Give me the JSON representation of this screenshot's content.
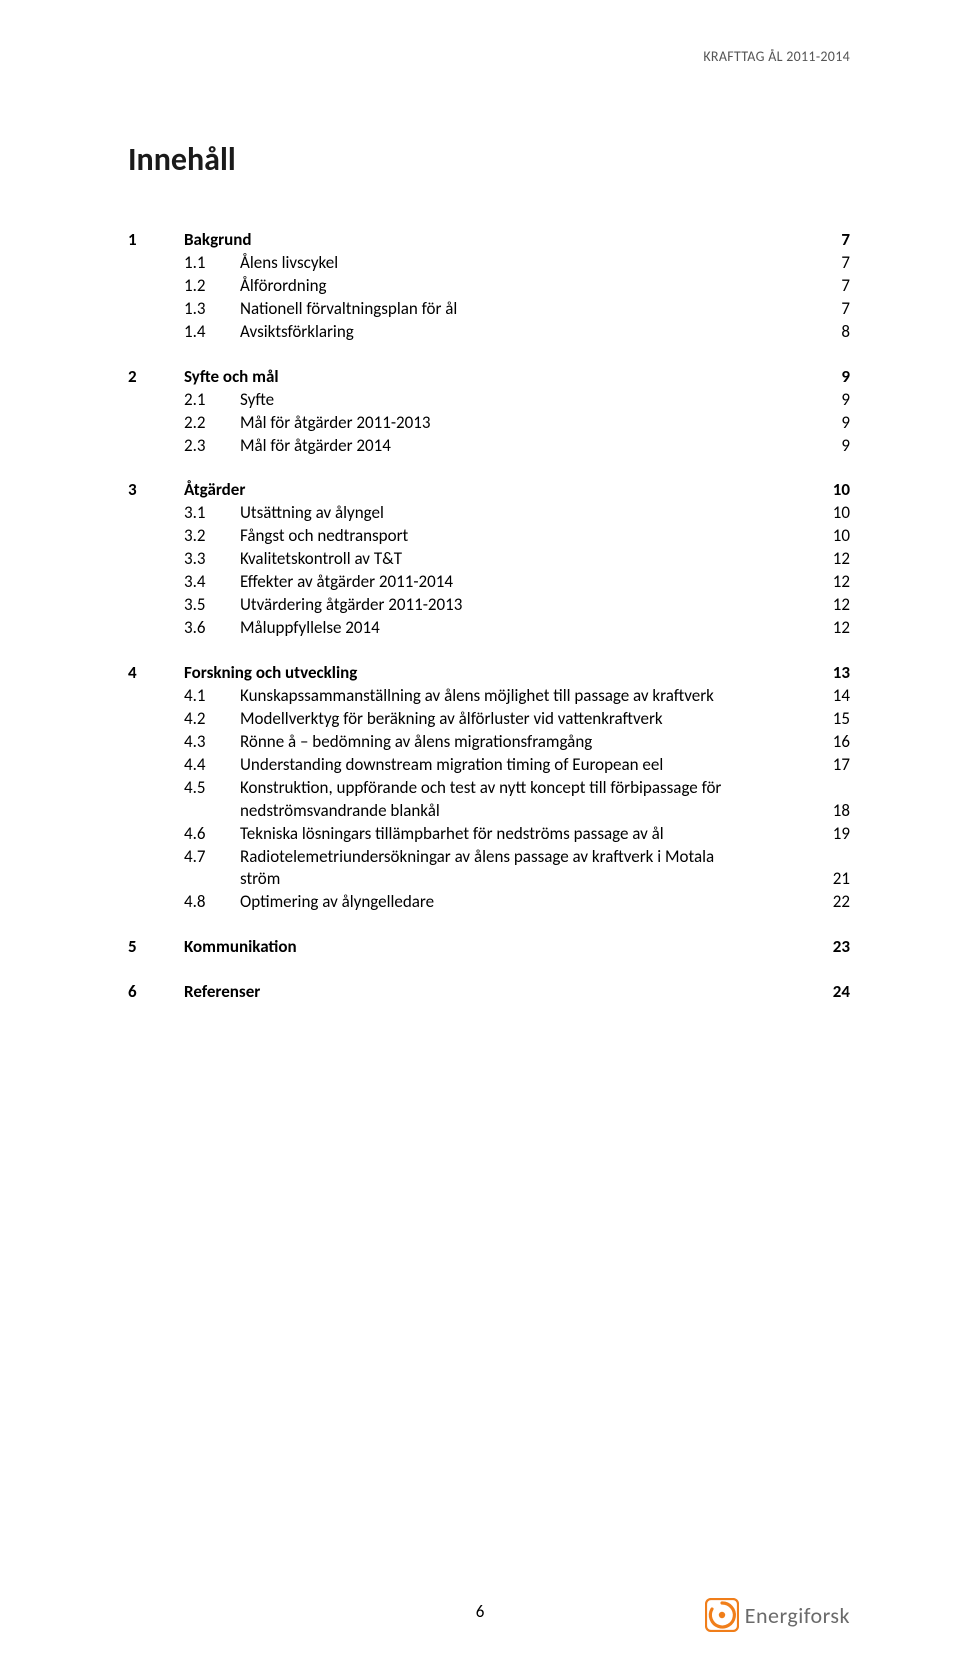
{
  "header": {
    "running": "KRAFTTAG ÅL 2011-2014"
  },
  "title": "Innehåll",
  "toc": [
    {
      "level": 1,
      "num": "1",
      "label": "Bakgrund",
      "page": "7"
    },
    {
      "level": 2,
      "num": "1.1",
      "label": "Ålens livscykel",
      "page": "7"
    },
    {
      "level": 2,
      "num": "1.2",
      "label": "Ålförordning",
      "page": "7"
    },
    {
      "level": 2,
      "num": "1.3",
      "label": "Nationell förvaltningsplan för ål",
      "page": "7"
    },
    {
      "level": 2,
      "num": "1.4",
      "label": "Avsiktsförklaring",
      "page": "8"
    },
    {
      "level": 1,
      "num": "2",
      "label": "Syfte och mål",
      "page": "9"
    },
    {
      "level": 2,
      "num": "2.1",
      "label": "Syfte",
      "page": "9"
    },
    {
      "level": 2,
      "num": "2.2",
      "label": "Mål för åtgärder 2011-2013",
      "page": "9"
    },
    {
      "level": 2,
      "num": "2.3",
      "label": "Mål för åtgärder 2014",
      "page": "9"
    },
    {
      "level": 1,
      "num": "3",
      "label": "Åtgärder",
      "page": "10"
    },
    {
      "level": 2,
      "num": "3.1",
      "label": "Utsättning av ålyngel",
      "page": "10"
    },
    {
      "level": 2,
      "num": "3.2",
      "label": "Fångst och nedtransport",
      "page": "10"
    },
    {
      "level": 2,
      "num": "3.3",
      "label": "Kvalitetskontroll av T&T",
      "page": "12"
    },
    {
      "level": 2,
      "num": "3.4",
      "label": "Effekter av åtgärder 2011-2014",
      "page": "12"
    },
    {
      "level": 2,
      "num": "3.5",
      "label": "Utvärdering åtgärder 2011-2013",
      "page": "12"
    },
    {
      "level": 2,
      "num": "3.6",
      "label": "Måluppfyllelse 2014",
      "page": "12"
    },
    {
      "level": 1,
      "num": "4",
      "label": "Forskning och utveckling",
      "page": "13"
    },
    {
      "level": 2,
      "num": "4.1",
      "label": "Kunskapssammanställning av ålens möjlighet till passage av kraftverk",
      "page": "14"
    },
    {
      "level": 2,
      "num": "4.2",
      "label": "Modellverktyg för beräkning av ålförluster vid vattenkraftverk",
      "page": "15"
    },
    {
      "level": 2,
      "num": "4.3",
      "label": "Rönne å – bedömning av ålens migrationsframgång",
      "page": "16"
    },
    {
      "level": 2,
      "num": "4.4",
      "label": "Understanding downstream migration timing of European eel",
      "page": "17"
    },
    {
      "level": 2,
      "num": "4.5",
      "label": "Konstruktion, uppförande och test av nytt koncept till förbipassage för nedströmsvandrande blankål",
      "page": "18",
      "wrap": true,
      "line1": "Konstruktion, uppförande och test av nytt koncept till förbipassage för",
      "line2": "nedströmsvandrande blankål"
    },
    {
      "level": 2,
      "num": "4.6",
      "label": "Tekniska lösningars tillämpbarhet för nedströms passage av ål",
      "page": "19"
    },
    {
      "level": 2,
      "num": "4.7",
      "label": "Radiotelemetriundersökningar av ålens passage av kraftverk i Motala ström",
      "page": "21",
      "wrap": true,
      "line1": "Radiotelemetriundersökningar av ålens passage av kraftverk i Motala",
      "line2": "ström"
    },
    {
      "level": 2,
      "num": "4.8",
      "label": "Optimering av ålyngelledare",
      "page": "22"
    },
    {
      "level": 1,
      "num": "5",
      "label": "Kommunikation",
      "page": "23"
    },
    {
      "level": 1,
      "num": "6",
      "label": "Referenser",
      "page": "24"
    }
  ],
  "footer": {
    "pageno": "6",
    "logo_text": "Energiforsk",
    "logo_color": "#f07e1a",
    "logo_gray": "#6a6a6a"
  }
}
